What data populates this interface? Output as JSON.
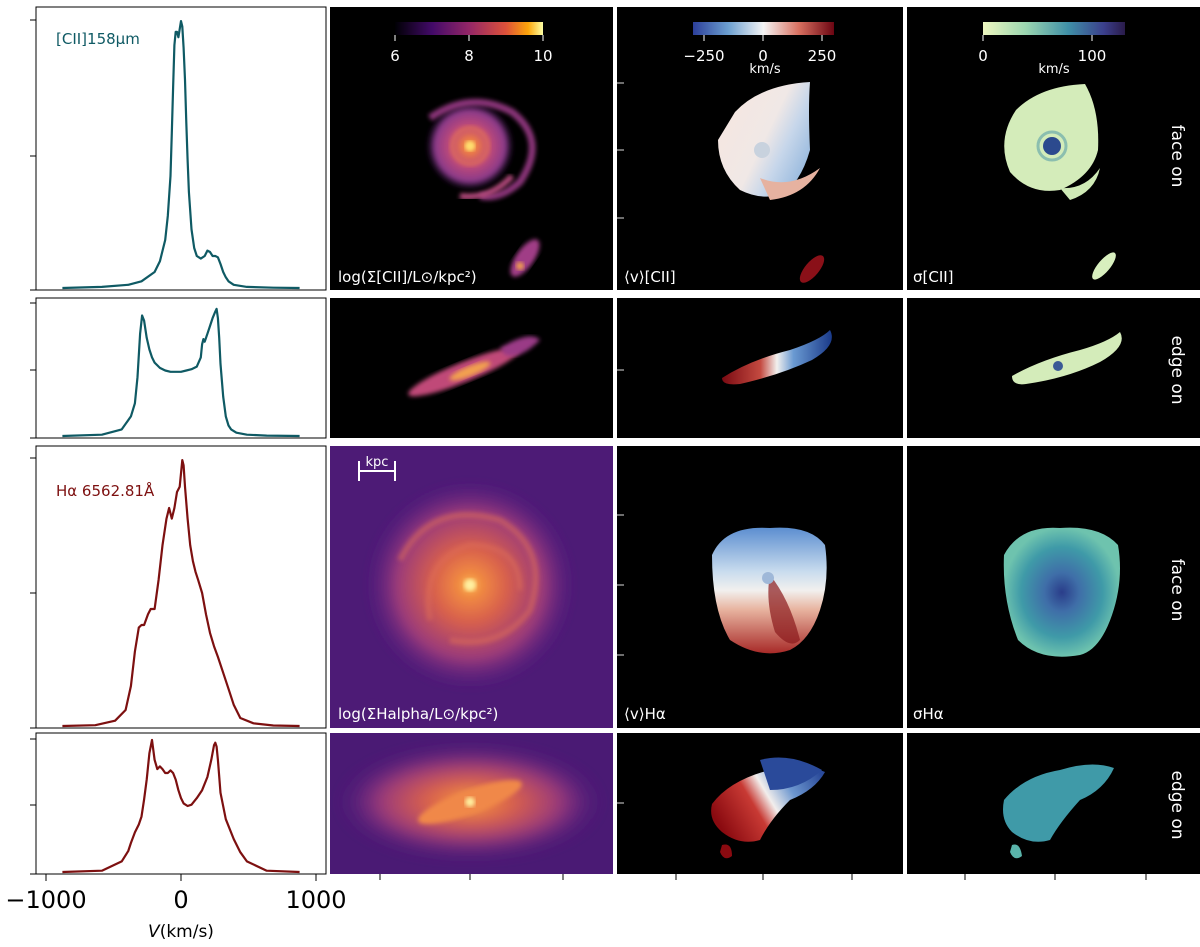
{
  "figure": {
    "xaxis": {
      "label_italic": "V",
      "label_rest": "(km/s)",
      "ticks": [
        -1000,
        0,
        1000
      ],
      "tick_labels": [
        "−1000",
        "0",
        "1000"
      ],
      "xlim": [
        -1100,
        1100
      ]
    },
    "tracers": {
      "cii": {
        "spectrum_label": "[CII]158μm",
        "color": "#0f5a64",
        "surface_label": "log(Σ[CII]/L⊙/kpc²)",
        "velocity_label": "⟨v⟩[CII]",
        "dispersion_label": "σ[CII]"
      },
      "halpha": {
        "spectrum_label": "Hα 6562.81Å",
        "color": "#7d1010",
        "surface_label": "log(ΣHalpha/L⊙/kpc²)",
        "velocity_label": "⟨v⟩Hα",
        "dispersion_label": "σHα"
      }
    },
    "orientation_labels": {
      "face": "face on",
      "edge": "edge on"
    },
    "scale_bar_label": "kpc",
    "colorbars": {
      "surface": {
        "ticks": [
          6,
          8,
          10
        ],
        "range": [
          6,
          10
        ]
      },
      "velocity": {
        "ticks": [
          "−250",
          "0",
          "250"
        ],
        "range": [
          -250,
          250
        ],
        "unit": "km/s"
      },
      "dispersion": {
        "ticks": [
          "0",
          "100"
        ],
        "range": [
          0,
          130
        ],
        "unit": "km/s"
      }
    }
  },
  "chart_data": [
    {
      "type": "line",
      "panel": "CII face on",
      "x_unit": "km/s",
      "x": [
        -900,
        -600,
        -400,
        -300,
        -200,
        -160,
        -120,
        -100,
        -80,
        -70,
        -60,
        -50,
        -40,
        -30,
        -20,
        -10,
        0,
        10,
        20,
        30,
        40,
        50,
        60,
        80,
        100,
        120,
        150,
        180,
        200,
        220,
        240,
        260,
        280,
        300,
        320,
        340,
        360,
        400,
        500,
        700,
        900
      ],
      "y": [
        0.0,
        0.004,
        0.012,
        0.025,
        0.06,
        0.1,
        0.18,
        0.27,
        0.42,
        0.58,
        0.75,
        0.91,
        0.96,
        0.96,
        0.94,
        0.97,
        1.0,
        0.98,
        0.9,
        0.78,
        0.62,
        0.48,
        0.36,
        0.22,
        0.15,
        0.12,
        0.11,
        0.12,
        0.14,
        0.135,
        0.12,
        0.12,
        0.115,
        0.09,
        0.06,
        0.04,
        0.025,
        0.012,
        0.004,
        0.001,
        0.0
      ]
    },
    {
      "type": "line",
      "panel": "CII edge on",
      "x_unit": "km/s",
      "x": [
        -900,
        -600,
        -450,
        -380,
        -350,
        -330,
        -310,
        -295,
        -280,
        -260,
        -240,
        -220,
        -200,
        -160,
        -120,
        -80,
        -40,
        0,
        40,
        80,
        120,
        150,
        160,
        170,
        180,
        200,
        220,
        240,
        260,
        270,
        280,
        290,
        300,
        320,
        340,
        360,
        380,
        420,
        500,
        650,
        900
      ],
      "y": [
        0.0,
        0.01,
        0.05,
        0.15,
        0.25,
        0.45,
        0.78,
        0.92,
        0.88,
        0.75,
        0.66,
        0.6,
        0.56,
        0.52,
        0.5,
        0.49,
        0.49,
        0.49,
        0.5,
        0.51,
        0.53,
        0.6,
        0.7,
        0.74,
        0.72,
        0.78,
        0.84,
        0.9,
        0.95,
        0.97,
        0.9,
        0.75,
        0.55,
        0.3,
        0.15,
        0.08,
        0.05,
        0.025,
        0.01,
        0.003,
        0.0
      ]
    },
    {
      "type": "line",
      "panel": "Halpha face on",
      "x_unit": "km/s",
      "x": [
        -900,
        -650,
        -500,
        -420,
        -380,
        -350,
        -320,
        -300,
        -280,
        -250,
        -230,
        -200,
        -170,
        -140,
        -110,
        -90,
        -70,
        -50,
        -30,
        -10,
        0,
        10,
        20,
        30,
        50,
        70,
        90,
        110,
        130,
        160,
        190,
        220,
        250,
        280,
        320,
        360,
        400,
        450,
        550,
        700,
        900
      ],
      "y": [
        0.0,
        0.003,
        0.02,
        0.06,
        0.15,
        0.28,
        0.37,
        0.38,
        0.38,
        0.42,
        0.44,
        0.44,
        0.55,
        0.68,
        0.78,
        0.82,
        0.78,
        0.82,
        0.88,
        0.9,
        0.95,
        1.0,
        0.98,
        0.9,
        0.78,
        0.68,
        0.62,
        0.58,
        0.55,
        0.5,
        0.42,
        0.35,
        0.3,
        0.26,
        0.2,
        0.14,
        0.08,
        0.03,
        0.01,
        0.002,
        0.0
      ]
    },
    {
      "type": "line",
      "panel": "Halpha edge on",
      "x_unit": "km/s",
      "x": [
        -900,
        -600,
        -450,
        -400,
        -380,
        -350,
        -320,
        -300,
        -280,
        -260,
        -240,
        -220,
        -200,
        -180,
        -160,
        -140,
        -120,
        -100,
        -80,
        -60,
        -40,
        -20,
        0,
        20,
        50,
        80,
        120,
        160,
        200,
        230,
        250,
        260,
        270,
        280,
        300,
        340,
        400,
        450,
        500,
        650,
        900
      ],
      "y": [
        0.0,
        0.01,
        0.08,
        0.16,
        0.22,
        0.3,
        0.36,
        0.42,
        0.55,
        0.7,
        0.9,
        1.0,
        0.85,
        0.78,
        0.8,
        0.78,
        0.75,
        0.75,
        0.77,
        0.75,
        0.7,
        0.62,
        0.56,
        0.52,
        0.5,
        0.51,
        0.56,
        0.62,
        0.72,
        0.85,
        0.96,
        0.98,
        0.95,
        0.85,
        0.6,
        0.4,
        0.25,
        0.15,
        0.08,
        0.01,
        0.0
      ]
    }
  ]
}
